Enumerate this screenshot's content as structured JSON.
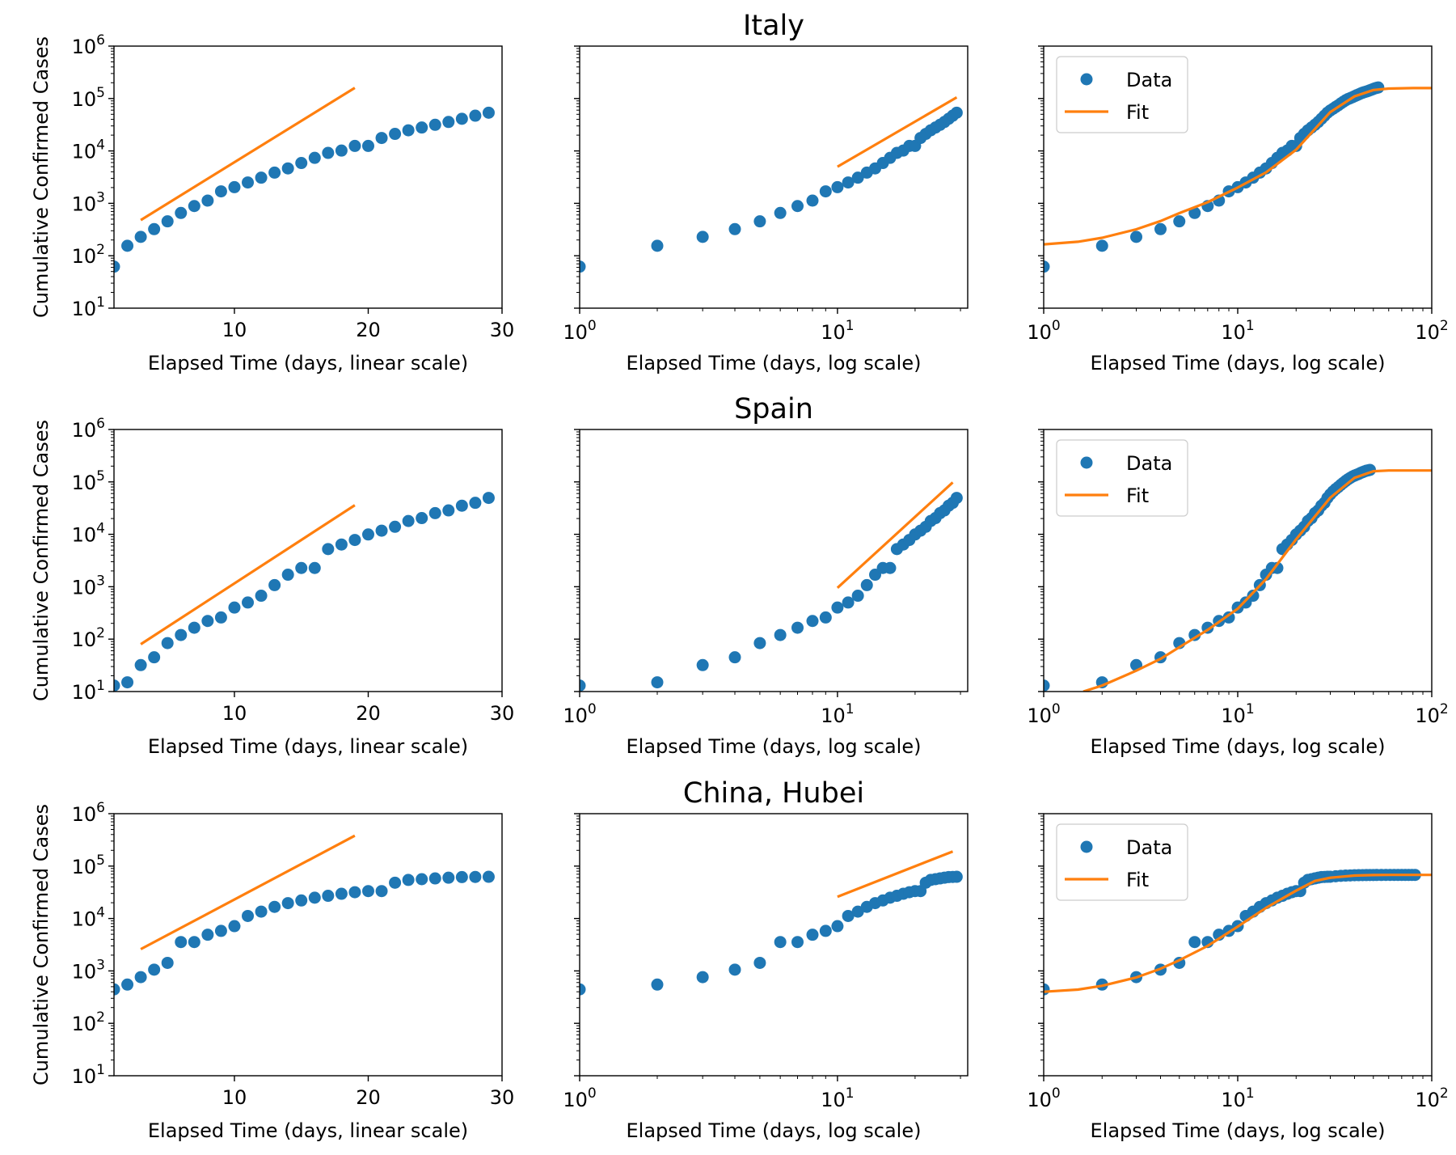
{
  "figure": {
    "row_titles": [
      "Italy",
      "Spain",
      "China, Hubei"
    ],
    "ylabel": "Cumulative Confirmed Cases",
    "xlabel_linear": "Elapsed Time (days, linear scale)",
    "xlabel_log": "Elapsed Time (days, log scale)",
    "legend": {
      "data": "Data",
      "fit": "Fit"
    },
    "colors": {
      "data": "#1f77b4",
      "fit": "#ff7f0e"
    }
  },
  "chart_data": [
    {
      "title": "Italy",
      "y_scale": "log",
      "ylim": [
        10,
        1000000
      ],
      "panels": [
        {
          "type": "scatter",
          "x_scale": "linear",
          "xlim": [
            1,
            30
          ],
          "xticks": [
            10,
            20,
            30
          ],
          "legend": false
        },
        {
          "type": "scatter",
          "x_scale": "log",
          "xlim": [
            1,
            32
          ],
          "xticks": [
            1,
            10
          ],
          "legend": false
        },
        {
          "type": "scatter",
          "x_scale": "log",
          "xlim": [
            1,
            100
          ],
          "xticks": [
            1,
            10,
            100
          ],
          "legend": "upper left"
        }
      ],
      "series": [
        {
          "name": "Data",
          "marker": "circle",
          "x": [
            1,
            2,
            3,
            4,
            5,
            6,
            7,
            8,
            9,
            10,
            11,
            12,
            13,
            14,
            15,
            16,
            17,
            18,
            19,
            20,
            21,
            22,
            23,
            24,
            25,
            26,
            27,
            28,
            29
          ],
          "y": [
            62,
            155,
            229,
            322,
            453,
            655,
            888,
            1128,
            1694,
            2036,
            2502,
            3089,
            3858,
            4636,
            5883,
            7375,
            9172,
            10149,
            12462,
            12462,
            17660,
            21157,
            24747,
            27980,
            31506,
            35713,
            41035,
            47021,
            53578
          ],
          "x_extended": [
            30,
            31,
            32,
            33,
            34,
            35,
            36,
            37,
            38,
            39,
            40,
            41,
            42,
            43,
            44,
            45,
            46,
            47,
            48,
            49,
            50,
            51,
            52,
            53
          ],
          "y_extended": [
            59138,
            63927,
            69176,
            74386,
            80589,
            86498,
            92472,
            97689,
            101739,
            105792,
            110574,
            115242,
            119827,
            124632,
            128948,
            132547,
            135586,
            139422,
            143626,
            147577,
            152271,
            156363,
            159516,
            162488
          ]
        },
        {
          "name": "Fit",
          "line": "power-law",
          "linear_panel": {
            "x": [
              3,
              19
            ],
            "y": [
              480,
              160000
            ]
          },
          "log_panel": {
            "x": [
              10,
              29
            ],
            "y": [
              5000,
              105000
            ]
          },
          "fit_curve": {
            "x": [
              1,
              1.5,
              2,
              3,
              4,
              5,
              7,
              10,
              14,
              20,
              30,
              40,
              50,
              60,
              80,
              100
            ],
            "y": [
              165,
              185,
              220,
              320,
              460,
              650,
              1050,
              2000,
              3900,
              10500,
              55000,
              110000,
              145000,
              155000,
              158000,
              158000
            ]
          }
        }
      ]
    },
    {
      "title": "Spain",
      "y_scale": "log",
      "ylim": [
        10,
        1000000
      ],
      "panels": [
        {
          "type": "scatter",
          "x_scale": "linear",
          "xlim": [
            1,
            30
          ],
          "xticks": [
            10,
            20,
            30
          ],
          "legend": false
        },
        {
          "type": "scatter",
          "x_scale": "log",
          "xlim": [
            1,
            32
          ],
          "xticks": [
            1,
            10
          ],
          "legend": false
        },
        {
          "type": "scatter",
          "x_scale": "log",
          "xlim": [
            1,
            100
          ],
          "xticks": [
            1,
            10,
            100
          ],
          "legend": "upper left"
        }
      ],
      "series": [
        {
          "name": "Data",
          "marker": "circle",
          "x": [
            1,
            2,
            3,
            4,
            5,
            6,
            7,
            8,
            9,
            10,
            11,
            12,
            13,
            14,
            15,
            16,
            17,
            18,
            19,
            20,
            21,
            22,
            23,
            24,
            25,
            26,
            27,
            28,
            29
          ],
          "y": [
            13,
            15,
            32,
            45,
            84,
            120,
            165,
            222,
            259,
            400,
            500,
            673,
            1073,
            1695,
            2277,
            2277,
            5232,
            6391,
            7798,
            9942,
            11748,
            13910,
            17963,
            20410,
            25374,
            28603,
            35136,
            39885,
            49515
          ],
          "x_extended": [
            30,
            31,
            32,
            33,
            34,
            35,
            36,
            37,
            38,
            39,
            40,
            41,
            42,
            43,
            44,
            45,
            46,
            47,
            48
          ],
          "y_extended": [
            57786,
            65719,
            73235,
            80110,
            87956,
            95923,
            104118,
            112065,
            119199,
            126168,
            131646,
            136675,
            141942,
            148220,
            153222,
            158273,
            163027,
            166019,
            169496
          ]
        },
        {
          "name": "Fit",
          "line": "power-law",
          "linear_panel": {
            "x": [
              3,
              19
            ],
            "y": [
              80,
              36000
            ]
          },
          "log_panel": {
            "x": [
              10,
              28
            ],
            "y": [
              950,
              98000
            ]
          },
          "fit_curve": {
            "x": [
              1.6,
              2,
              3,
              4,
              5,
              7,
              10,
              14,
              20,
              30,
              40,
              50,
              60,
              80,
              100
            ],
            "y": [
              10,
              13,
              25,
              42,
              70,
              150,
              380,
              1400,
              8000,
              50000,
              120000,
              160000,
              165000,
              165000,
              165000
            ]
          }
        }
      ]
    },
    {
      "title": "China, Hubei",
      "y_scale": "log",
      "ylim": [
        10,
        1000000
      ],
      "panels": [
        {
          "type": "scatter",
          "x_scale": "linear",
          "xlim": [
            1,
            30
          ],
          "xticks": [
            10,
            20,
            30
          ],
          "legend": false
        },
        {
          "type": "scatter",
          "x_scale": "log",
          "xlim": [
            1,
            32
          ],
          "xticks": [
            1,
            10
          ],
          "legend": false
        },
        {
          "type": "scatter",
          "x_scale": "log",
          "xlim": [
            1,
            100
          ],
          "xticks": [
            1,
            10,
            100
          ],
          "legend": "upper left"
        }
      ],
      "series": [
        {
          "name": "Data",
          "marker": "circle",
          "x": [
            1,
            2,
            3,
            4,
            5,
            6,
            7,
            8,
            9,
            10,
            11,
            12,
            13,
            14,
            15,
            16,
            17,
            18,
            19,
            20,
            21,
            22,
            23,
            24,
            25,
            26,
            27,
            28,
            29
          ],
          "y": [
            444,
            549,
            761,
            1058,
            1423,
            3554,
            3554,
            4903,
            5806,
            7153,
            11177,
            13522,
            16678,
            19665,
            22112,
            24953,
            27100,
            29631,
            31728,
            33366,
            33366,
            48206,
            54406,
            56249,
            58182,
            59989,
            61682,
            62031,
            62442
          ],
          "x_extended": [
            30,
            32,
            34,
            36,
            38,
            40,
            42,
            44,
            46,
            48,
            50,
            52,
            55,
            58,
            61,
            64,
            67,
            70,
            73,
            76,
            79,
            82
          ],
          "y_extended": [
            62662,
            64084,
            65187,
            65914,
            66337,
            66907,
            67103,
            67217,
            67332,
            67466,
            67592,
            67666,
            67743,
            67781,
            67794,
            67798,
            67801,
            67801,
            67801,
            67802,
            67802,
            67803
          ]
        },
        {
          "name": "Fit",
          "line": "power-law",
          "linear_panel": {
            "x": [
              3,
              19
            ],
            "y": [
              2600,
              380000
            ]
          },
          "log_panel": {
            "x": [
              10,
              28
            ],
            "y": [
              26000,
              190000
            ]
          },
          "fit_curve": {
            "x": [
              1,
              1.5,
              2,
              3,
              4,
              5,
              7,
              10,
              14,
              20,
              25,
              30,
              40,
              50,
              60,
              80,
              100
            ],
            "y": [
              400,
              440,
              520,
              750,
              1100,
              1600,
              3000,
              7000,
              16000,
              34000,
              52000,
              60000,
              66000,
              67500,
              68000,
              68000,
              68000
            ]
          }
        }
      ]
    }
  ]
}
